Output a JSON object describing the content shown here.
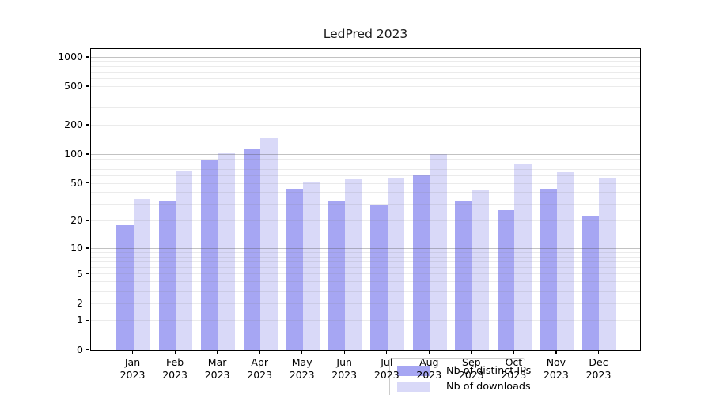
{
  "chart_data": {
    "type": "bar",
    "title": "LedPred 2023",
    "categories": [
      "Jan",
      "Feb",
      "Mar",
      "Apr",
      "May",
      "Jun",
      "Jul",
      "Aug",
      "Sep",
      "Oct",
      "Nov",
      "Dec"
    ],
    "year_label": "2023",
    "series": [
      {
        "name": "Nb of distinct IPs",
        "color": "#a6a6f3",
        "values": [
          18,
          33,
          87,
          115,
          44,
          32,
          30,
          61,
          33,
          26,
          44,
          23
        ]
      },
      {
        "name": "Nb of downloads",
        "color": "#d9d9f8",
        "values": [
          34,
          66,
          103,
          147,
          51,
          56,
          57,
          100,
          43,
          80,
          65,
          57
        ]
      }
    ],
    "xlabel": "",
    "ylabel": "",
    "y_axis": {
      "scale": "log10(value+1)",
      "tick_values": [
        1000,
        500,
        200,
        100,
        50,
        20,
        10,
        5,
        2,
        1,
        0
      ],
      "tick_labels": [
        "1000",
        "500",
        "200",
        "100",
        "50",
        "20",
        "10",
        "5",
        "2",
        "1",
        "0"
      ],
      "major_gridlines": [
        1000,
        100,
        10
      ],
      "minor_gridlines": [
        900,
        800,
        700,
        600,
        500,
        400,
        300,
        200,
        90,
        80,
        70,
        60,
        50,
        40,
        30,
        20,
        9,
        8,
        7,
        6,
        5,
        4,
        3,
        2,
        1
      ],
      "ylim": [
        0,
        1250
      ]
    },
    "grid": true,
    "legend_position": "lower center",
    "colors": {
      "spine": "#000000",
      "major_grid": "#c6c6c6",
      "minor_grid": "#e9e9e9",
      "background": "#ffffff"
    }
  }
}
